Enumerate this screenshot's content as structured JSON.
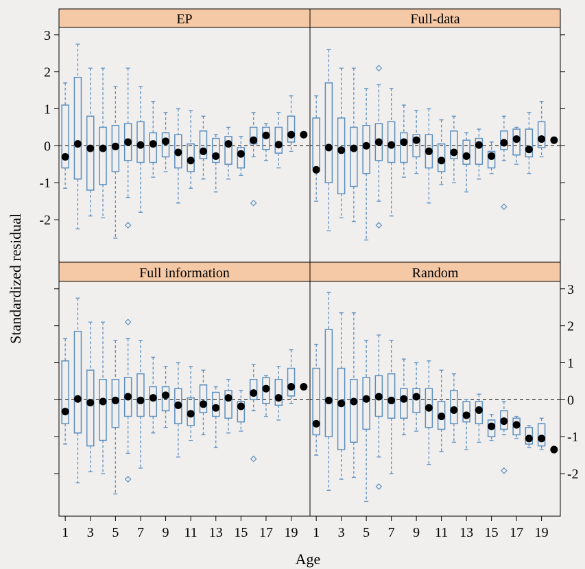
{
  "chart_data": {
    "type": "boxplot",
    "xlabel": "Age",
    "ylabel": "Standardized residual",
    "ylim": [
      -3.15,
      3.2
    ],
    "x_ticks": [
      1,
      3,
      5,
      7,
      9,
      11,
      13,
      15,
      17,
      19
    ],
    "y_ticks": [
      -2,
      -1,
      0,
      1,
      2,
      3
    ],
    "reference_line": 0,
    "colors": {
      "box": "#5b8fbf",
      "point": "#000000",
      "strip": "#f5c9a6",
      "background": "#f1efee"
    },
    "panels": [
      {
        "name": "EP",
        "boxes": [
          {
            "age": 1,
            "lo": -1.15,
            "q1": -0.6,
            "q3": 1.1,
            "hi": 1.7
          },
          {
            "age": 2,
            "lo": -2.25,
            "q1": -0.9,
            "q3": 1.85,
            "hi": 2.75
          },
          {
            "age": 3,
            "lo": -1.9,
            "q1": -1.2,
            "q3": 0.8,
            "hi": 2.1
          },
          {
            "age": 4,
            "lo": -1.95,
            "q1": -1.05,
            "q3": 0.5,
            "hi": 2.1
          },
          {
            "age": 5,
            "lo": -2.5,
            "q1": -0.7,
            "q3": 0.55,
            "hi": 1.6
          },
          {
            "age": 6,
            "lo": -1.4,
            "q1": -0.4,
            "q3": 0.6,
            "hi": 2.1
          },
          {
            "age": 7,
            "lo": -1.8,
            "q1": -0.45,
            "q3": 0.65,
            "hi": 1.6
          },
          {
            "age": 8,
            "lo": -0.85,
            "q1": -0.45,
            "q3": 0.35,
            "hi": 1.2
          },
          {
            "age": 9,
            "lo": -0.7,
            "q1": -0.3,
            "q3": 0.35,
            "hi": 0.9
          },
          {
            "age": 10,
            "lo": -1.55,
            "q1": -0.6,
            "q3": 0.3,
            "hi": 1.0
          },
          {
            "age": 11,
            "lo": -1.15,
            "q1": -0.7,
            "q3": 0.05,
            "hi": 0.95
          },
          {
            "age": 12,
            "lo": -0.9,
            "q1": -0.35,
            "q3": 0.4,
            "hi": 0.8
          },
          {
            "age": 13,
            "lo": -1.25,
            "q1": -0.45,
            "q3": 0.2,
            "hi": 0.3
          },
          {
            "age": 14,
            "lo": -0.9,
            "q1": -0.5,
            "q3": 0.25,
            "hi": 0.5
          },
          {
            "age": 15,
            "lo": -0.8,
            "q1": -0.6,
            "q3": -0.05,
            "hi": 0.25
          },
          {
            "age": 16,
            "lo": -0.3,
            "q1": 0.05,
            "q3": 0.5,
            "hi": 0.9
          },
          {
            "age": 17,
            "lo": -0.4,
            "q1": -0.1,
            "q3": 0.5,
            "hi": 0.6
          },
          {
            "age": 18,
            "lo": -0.6,
            "q1": -0.2,
            "q3": 0.5,
            "hi": 0.9
          },
          {
            "age": 19,
            "lo": -0.15,
            "q1": 0.1,
            "q3": 0.8,
            "hi": 1.35
          }
        ],
        "means": [
          {
            "age": 1,
            "value": -0.3
          },
          {
            "age": 2,
            "value": 0.05
          },
          {
            "age": 3,
            "value": -0.07
          },
          {
            "age": 4,
            "value": -0.07
          },
          {
            "age": 5,
            "value": -0.02
          },
          {
            "age": 6,
            "value": 0.1
          },
          {
            "age": 7,
            "value": 0.02
          },
          {
            "age": 8,
            "value": 0.05
          },
          {
            "age": 9,
            "value": 0.12
          },
          {
            "age": 10,
            "value": -0.18
          },
          {
            "age": 11,
            "value": -0.4
          },
          {
            "age": 12,
            "value": -0.15
          },
          {
            "age": 13,
            "value": -0.28
          },
          {
            "age": 14,
            "value": 0.05
          },
          {
            "age": 15,
            "value": -0.22
          },
          {
            "age": 16,
            "value": 0.15
          },
          {
            "age": 17,
            "value": 0.28
          },
          {
            "age": 18,
            "value": 0.03
          },
          {
            "age": 19,
            "value": 0.3
          },
          {
            "age": 20,
            "value": 0.3
          }
        ],
        "outliers": [
          {
            "age": 6,
            "value": -2.15
          },
          {
            "age": 16,
            "value": -1.55
          }
        ]
      },
      {
        "name": "Full-data",
        "boxes": [
          {
            "age": 1,
            "lo": -1.5,
            "q1": -0.6,
            "q3": 0.75,
            "hi": 1.35
          },
          {
            "age": 2,
            "lo": -2.3,
            "q1": -1.0,
            "q3": 1.7,
            "hi": 2.6
          },
          {
            "age": 3,
            "lo": -1.95,
            "q1": -1.3,
            "q3": 0.75,
            "hi": 2.1
          },
          {
            "age": 4,
            "lo": -2.05,
            "q1": -1.1,
            "q3": 0.5,
            "hi": 2.1
          },
          {
            "age": 5,
            "lo": -2.55,
            "q1": -0.75,
            "q3": 0.55,
            "hi": 1.55
          },
          {
            "age": 6,
            "lo": -1.5,
            "q1": -0.4,
            "q3": 0.6,
            "hi": 1.65
          },
          {
            "age": 7,
            "lo": -1.9,
            "q1": -0.45,
            "q3": 0.65,
            "hi": 1.55
          },
          {
            "age": 8,
            "lo": -0.85,
            "q1": -0.45,
            "q3": 0.35,
            "hi": 1.1
          },
          {
            "age": 9,
            "lo": -0.75,
            "q1": -0.3,
            "q3": 0.3,
            "hi": 0.95
          },
          {
            "age": 10,
            "lo": -1.55,
            "q1": -0.6,
            "q3": 0.3,
            "hi": 1.0
          },
          {
            "age": 11,
            "lo": -1.05,
            "q1": -0.7,
            "q3": 0.05,
            "hi": 0.7
          },
          {
            "age": 12,
            "lo": -1.0,
            "q1": -0.35,
            "q3": 0.4,
            "hi": 0.8
          },
          {
            "age": 13,
            "lo": -1.25,
            "q1": -0.5,
            "q3": 0.15,
            "hi": 0.35
          },
          {
            "age": 14,
            "lo": -0.9,
            "q1": -0.5,
            "q3": 0.2,
            "hi": 0.45
          },
          {
            "age": 15,
            "lo": -0.75,
            "q1": -0.6,
            "q3": -0.15,
            "hi": 0.1
          },
          {
            "age": 16,
            "lo": -0.4,
            "q1": -0.1,
            "q3": 0.4,
            "hi": 0.8
          },
          {
            "age": 17,
            "lo": -0.5,
            "q1": -0.25,
            "q3": 0.45,
            "hi": 0.5
          },
          {
            "age": 18,
            "lo": -0.75,
            "q1": -0.3,
            "q3": 0.45,
            "hi": 0.9
          },
          {
            "age": 19,
            "lo": -0.3,
            "q1": -0.05,
            "q3": 0.65,
            "hi": 1.2
          }
        ],
        "means": [
          {
            "age": 1,
            "value": -0.65
          },
          {
            "age": 2,
            "value": -0.05
          },
          {
            "age": 3,
            "value": -0.12
          },
          {
            "age": 4,
            "value": -0.07
          },
          {
            "age": 5,
            "value": 0.0
          },
          {
            "age": 6,
            "value": 0.1
          },
          {
            "age": 7,
            "value": 0.02
          },
          {
            "age": 8,
            "value": 0.1
          },
          {
            "age": 9,
            "value": 0.15
          },
          {
            "age": 10,
            "value": -0.15
          },
          {
            "age": 11,
            "value": -0.4
          },
          {
            "age": 12,
            "value": -0.18
          },
          {
            "age": 13,
            "value": -0.28
          },
          {
            "age": 14,
            "value": 0.02
          },
          {
            "age": 15,
            "value": -0.28
          },
          {
            "age": 16,
            "value": 0.08
          },
          {
            "age": 17,
            "value": 0.18
          },
          {
            "age": 18,
            "value": -0.1
          },
          {
            "age": 19,
            "value": 0.18
          },
          {
            "age": 20,
            "value": 0.15
          }
        ],
        "outliers": [
          {
            "age": 6,
            "value": 2.1
          },
          {
            "age": 6,
            "value": -2.15
          },
          {
            "age": 16,
            "value": -1.65
          }
        ]
      },
      {
        "name": "Full information",
        "boxes": [
          {
            "age": 1,
            "lo": -1.2,
            "q1": -0.65,
            "q3": 1.05,
            "hi": 1.65
          },
          {
            "age": 2,
            "lo": -2.25,
            "q1": -0.9,
            "q3": 1.85,
            "hi": 2.75
          },
          {
            "age": 3,
            "lo": -1.95,
            "q1": -1.25,
            "q3": 0.8,
            "hi": 2.1
          },
          {
            "age": 4,
            "lo": -2.0,
            "q1": -1.1,
            "q3": 0.55,
            "hi": 2.1
          },
          {
            "age": 5,
            "lo": -2.55,
            "q1": -0.75,
            "q3": 0.55,
            "hi": 1.6
          },
          {
            "age": 6,
            "lo": -1.45,
            "q1": -0.45,
            "q3": 0.6,
            "hi": 1.65
          },
          {
            "age": 7,
            "lo": -1.85,
            "q1": -0.45,
            "q3": 0.7,
            "hi": 1.6
          },
          {
            "age": 8,
            "lo": -0.9,
            "q1": -0.45,
            "q3": 0.35,
            "hi": 1.15
          },
          {
            "age": 9,
            "lo": -0.75,
            "q1": -0.3,
            "q3": 0.35,
            "hi": 0.9
          },
          {
            "age": 10,
            "lo": -1.55,
            "q1": -0.65,
            "q3": 0.3,
            "hi": 1.0
          },
          {
            "age": 11,
            "lo": -1.1,
            "q1": -0.7,
            "q3": 0.05,
            "hi": 0.9
          },
          {
            "age": 12,
            "lo": -0.95,
            "q1": -0.35,
            "q3": 0.4,
            "hi": 0.8
          },
          {
            "age": 13,
            "lo": -1.3,
            "q1": -0.45,
            "q3": 0.2,
            "hi": 0.35
          },
          {
            "age": 14,
            "lo": -0.9,
            "q1": -0.5,
            "q3": 0.25,
            "hi": 0.55
          },
          {
            "age": 15,
            "lo": -0.85,
            "q1": -0.6,
            "q3": -0.05,
            "hi": 0.25
          },
          {
            "age": 16,
            "lo": -0.3,
            "q1": 0.0,
            "q3": 0.55,
            "hi": 0.95
          },
          {
            "age": 17,
            "lo": -0.45,
            "q1": -0.1,
            "q3": 0.6,
            "hi": 0.65
          },
          {
            "age": 18,
            "lo": -0.55,
            "q1": -0.15,
            "q3": 0.55,
            "hi": 0.9
          },
          {
            "age": 19,
            "lo": -0.1,
            "q1": 0.1,
            "q3": 0.85,
            "hi": 1.35
          }
        ],
        "means": [
          {
            "age": 1,
            "value": -0.32
          },
          {
            "age": 2,
            "value": 0.02
          },
          {
            "age": 3,
            "value": -0.08
          },
          {
            "age": 4,
            "value": -0.05
          },
          {
            "age": 5,
            "value": -0.02
          },
          {
            "age": 6,
            "value": 0.08
          },
          {
            "age": 7,
            "value": -0.02
          },
          {
            "age": 8,
            "value": 0.05
          },
          {
            "age": 9,
            "value": 0.12
          },
          {
            "age": 10,
            "value": -0.15
          },
          {
            "age": 11,
            "value": -0.38
          },
          {
            "age": 12,
            "value": -0.12
          },
          {
            "age": 13,
            "value": -0.22
          },
          {
            "age": 14,
            "value": 0.05
          },
          {
            "age": 15,
            "value": -0.18
          },
          {
            "age": 16,
            "value": 0.18
          },
          {
            "age": 17,
            "value": 0.3
          },
          {
            "age": 18,
            "value": 0.05
          },
          {
            "age": 19,
            "value": 0.35
          },
          {
            "age": 20,
            "value": 0.35
          }
        ],
        "outliers": [
          {
            "age": 6,
            "value": 2.1
          },
          {
            "age": 6,
            "value": -2.15
          },
          {
            "age": 16,
            "value": -1.6
          }
        ]
      },
      {
        "name": "Random",
        "boxes": [
          {
            "age": 1,
            "lo": -1.5,
            "q1": -0.95,
            "q3": 0.85,
            "hi": 1.5
          },
          {
            "age": 2,
            "lo": -2.45,
            "q1": -1.0,
            "q3": 1.9,
            "hi": 2.9
          },
          {
            "age": 3,
            "lo": -2.15,
            "q1": -1.35,
            "q3": 0.85,
            "hi": 2.35
          },
          {
            "age": 4,
            "lo": -2.1,
            "q1": -1.15,
            "q3": 0.55,
            "hi": 2.35
          },
          {
            "age": 5,
            "lo": -2.75,
            "q1": -0.8,
            "q3": 0.6,
            "hi": 1.6
          },
          {
            "age": 6,
            "lo": -1.55,
            "q1": -0.45,
            "q3": 0.65,
            "hi": 1.75
          },
          {
            "age": 7,
            "lo": -2.0,
            "q1": -0.5,
            "q3": 0.7,
            "hi": 1.6
          },
          {
            "age": 8,
            "lo": -0.95,
            "q1": -0.5,
            "q3": 0.3,
            "hi": 1.1
          },
          {
            "age": 9,
            "lo": -0.85,
            "q1": -0.35,
            "q3": 0.3,
            "hi": 1.0
          },
          {
            "age": 10,
            "lo": -1.75,
            "q1": -0.75,
            "q3": 0.3,
            "hi": 1.05
          },
          {
            "age": 11,
            "lo": -1.4,
            "q1": -0.8,
            "q3": -0.05,
            "hi": 0.8
          },
          {
            "age": 12,
            "lo": -1.15,
            "q1": -0.65,
            "q3": 0.25,
            "hi": 0.7
          },
          {
            "age": 13,
            "lo": -1.35,
            "q1": -0.6,
            "q3": -0.05,
            "hi": 0.0
          },
          {
            "age": 14,
            "lo": -1.15,
            "q1": -0.65,
            "q3": -0.05,
            "hi": 0.15
          },
          {
            "age": 15,
            "lo": -1.1,
            "q1": -1.0,
            "q3": -0.55,
            "hi": -0.4
          },
          {
            "age": 16,
            "lo": -0.95,
            "q1": -0.8,
            "q3": -0.3,
            "hi": -0.05
          },
          {
            "age": 17,
            "lo": -1.05,
            "q1": -0.95,
            "q3": -0.5,
            "hi": -0.45
          },
          {
            "age": 18,
            "lo": -1.3,
            "q1": -1.2,
            "q3": -0.75,
            "hi": -0.7
          },
          {
            "age": 19,
            "lo": -1.35,
            "q1": -1.25,
            "q3": -0.65,
            "hi": -0.5
          }
        ],
        "means": [
          {
            "age": 1,
            "value": -0.65
          },
          {
            "age": 2,
            "value": -0.02
          },
          {
            "age": 3,
            "value": -0.1
          },
          {
            "age": 4,
            "value": -0.05
          },
          {
            "age": 5,
            "value": 0.02
          },
          {
            "age": 6,
            "value": 0.08
          },
          {
            "age": 7,
            "value": -0.02
          },
          {
            "age": 8,
            "value": 0.02
          },
          {
            "age": 9,
            "value": 0.08
          },
          {
            "age": 10,
            "value": -0.22
          },
          {
            "age": 11,
            "value": -0.45
          },
          {
            "age": 12,
            "value": -0.28
          },
          {
            "age": 13,
            "value": -0.42
          },
          {
            "age": 14,
            "value": -0.28
          },
          {
            "age": 15,
            "value": -0.72
          },
          {
            "age": 16,
            "value": -0.58
          },
          {
            "age": 17,
            "value": -0.68
          },
          {
            "age": 18,
            "value": -1.05
          },
          {
            "age": 19,
            "value": -1.05
          },
          {
            "age": 20,
            "value": -1.35
          }
        ],
        "outliers": [
          {
            "age": 6,
            "value": -2.35
          },
          {
            "age": 16,
            "value": -1.92
          }
        ]
      }
    ]
  }
}
